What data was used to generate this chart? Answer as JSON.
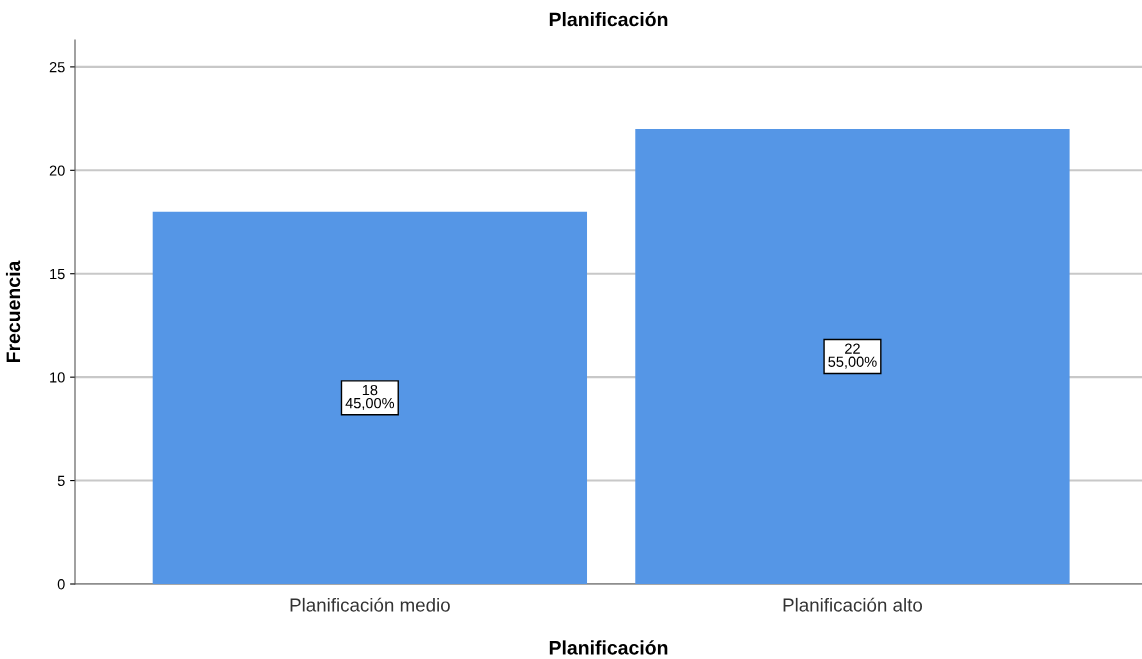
{
  "chart_data": {
    "type": "bar",
    "title": "Planificación",
    "xlabel": "Planificación",
    "ylabel": "Frecuencia",
    "categories": [
      "Planificación medio",
      "Planificación alto"
    ],
    "values": [
      18,
      22
    ],
    "color": "#5596e6",
    "value_labels": [
      "18\n45,00%",
      "22\n55,00%"
    ],
    "ylim": [
      0,
      26.3
    ],
    "yticks": [
      0,
      5,
      10,
      15,
      20,
      25
    ],
    "grid": "y",
    "legend": false
  }
}
